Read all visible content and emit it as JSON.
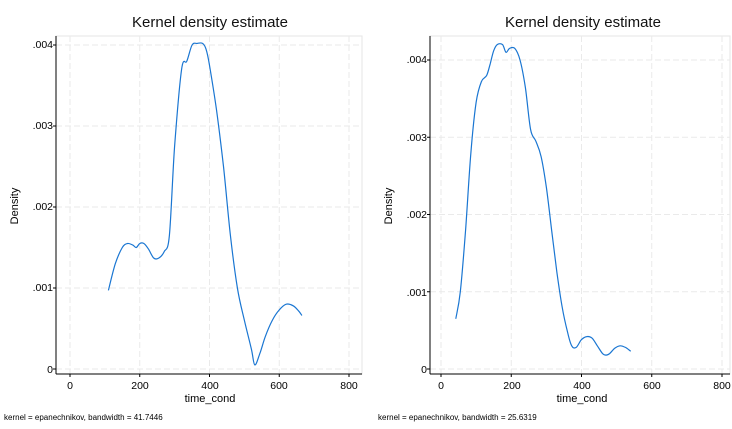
{
  "charts": [
    {
      "title": "Kernel density estimate",
      "ylabel": "Density",
      "xlabel": "time_cond",
      "note": "kernel = epanechnikov, bandwidth = 41.7446",
      "xticks": [
        "0",
        "200",
        "400",
        "600",
        "800"
      ],
      "yticks": [
        "0",
        ".001",
        ".002",
        ".003",
        ".004"
      ]
    },
    {
      "title": "Kernel density estimate",
      "ylabel": "Density",
      "xlabel": "time_cond",
      "note": "kernel = epanechnikov, bandwidth = 25.6319",
      "xticks": [
        "0",
        "200",
        "400",
        "600",
        "800"
      ],
      "yticks": [
        "0",
        ".001",
        ".002",
        ".003",
        ".004"
      ]
    }
  ],
  "chart_data": [
    {
      "type": "line",
      "title": "Kernel density estimate",
      "xlabel": "time_cond",
      "ylabel": "Density",
      "xlim": [
        0,
        800
      ],
      "ylim": [
        0,
        0.004
      ],
      "grid": true,
      "line_color": "#1a76d2",
      "series": [
        {
          "x": [
            110,
            130,
            150,
            165,
            180,
            190,
            200,
            212,
            225,
            240,
            255,
            270,
            285,
            300,
            320,
            335,
            350,
            365,
            380,
            390,
            400,
            420,
            440,
            460,
            480,
            500,
            520,
            530,
            545,
            560,
            580,
            600,
            620,
            640,
            655,
            665
          ],
          "y": [
            0.00097,
            0.0013,
            0.0015,
            0.00155,
            0.00153,
            0.0015,
            0.00155,
            0.00155,
            0.00148,
            0.00137,
            0.00137,
            0.00145,
            0.00165,
            0.00275,
            0.0037,
            0.0038,
            0.004,
            0.00402,
            0.00402,
            0.00395,
            0.00375,
            0.0032,
            0.0025,
            0.00165,
            0.001,
            0.0006,
            0.00025,
            5e-05,
            0.0002,
            0.0004,
            0.0006,
            0.00073,
            0.0008,
            0.00078,
            0.00072,
            0.00066
          ]
        }
      ]
    },
    {
      "type": "line",
      "title": "Kernel density estimate",
      "xlabel": "time_cond",
      "ylabel": "Density",
      "xlim": [
        0,
        800
      ],
      "ylim": [
        0,
        0.004
      ],
      "grid": true,
      "line_color": "#1a76d2",
      "series": [
        {
          "x": [
            42,
            55,
            70,
            85,
            100,
            115,
            130,
            140,
            150,
            160,
            175,
            185,
            195,
            210,
            225,
            240,
            255,
            270,
            285,
            300,
            315,
            330,
            345,
            360,
            372,
            385,
            400,
            415,
            430,
            445,
            460,
            470,
            480,
            495,
            510,
            525,
            540
          ],
          "y": [
            0.00065,
            0.001,
            0.0018,
            0.0028,
            0.00345,
            0.00372,
            0.0038,
            0.00395,
            0.00412,
            0.0042,
            0.0042,
            0.0041,
            0.00415,
            0.00415,
            0.004,
            0.00365,
            0.0031,
            0.00295,
            0.00275,
            0.00235,
            0.0018,
            0.00125,
            0.0008,
            0.00048,
            0.0003,
            0.00028,
            0.00038,
            0.00042,
            0.0004,
            0.0003,
            0.0002,
            0.00018,
            0.0002,
            0.00027,
            0.0003,
            0.00028,
            0.00023
          ]
        }
      ]
    }
  ]
}
